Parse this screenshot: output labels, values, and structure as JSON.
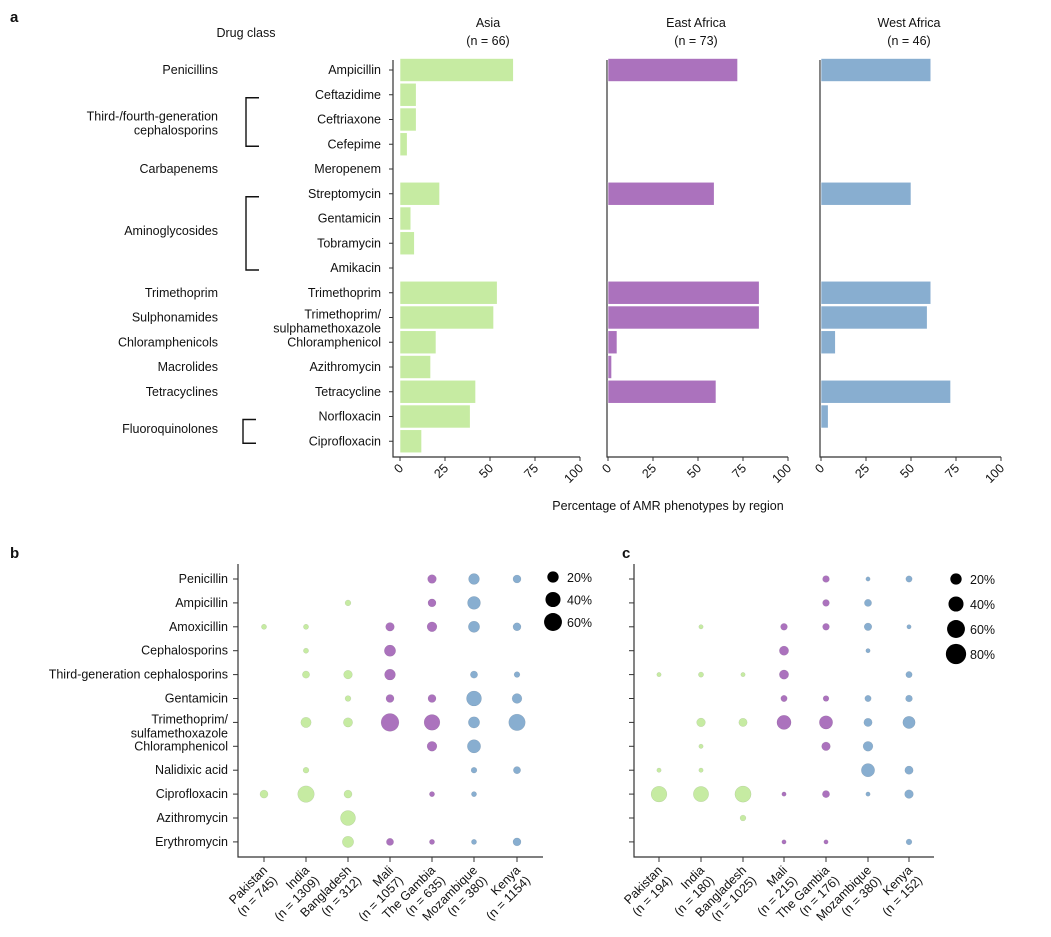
{
  "colors": {
    "Asia": "#c6eba2",
    "East Africa": "#ab72bd",
    "West Africa": "#88aed0",
    "legend": "#000000"
  },
  "chart_data": [
    {
      "panel": "a",
      "type": "bar",
      "orientation": "horizontal",
      "header_left": "Drug class",
      "xlabel": "Percentage of AMR phenotypes by region",
      "xlim": [
        0,
        100
      ],
      "xticks": [
        "0",
        "25",
        "50",
        "75",
        "100"
      ],
      "classes": [
        {
          "label": "Penicillins",
          "drugs": [
            "Ampicillin"
          ],
          "bracket": false
        },
        {
          "label": "Third-/fourth-generation\ncephalosporins",
          "drugs": [
            "Ceftazidime",
            "Ceftriaxone",
            "Cefepime"
          ],
          "bracket": true
        },
        {
          "label": "Carbapenems",
          "drugs": [
            "Meropenem"
          ],
          "bracket": false
        },
        {
          "label": "Aminoglycosides",
          "drugs": [
            "Streptomycin",
            "Gentamicin",
            "Tobramycin",
            "Amikacin"
          ],
          "bracket": true
        },
        {
          "label": "Trimethoprim",
          "drugs": [
            "Trimethoprim"
          ],
          "bracket": false
        },
        {
          "label": "Sulphonamides",
          "drugs": [
            "Trimethoprim/\nsulphamethoxazole"
          ],
          "bracket": false
        },
        {
          "label": "Chloramphenicols",
          "drugs": [
            "Chloramphenicol"
          ],
          "bracket": false
        },
        {
          "label": "Macrolides",
          "drugs": [
            "Azithromycin"
          ],
          "bracket": false
        },
        {
          "label": "Tetracyclines",
          "drugs": [
            "Tetracycline"
          ],
          "bracket": false
        },
        {
          "label": "Fluoroquinolones",
          "drugs": [
            "Norfloxacin",
            "Ciprofloxacin"
          ],
          "bracket": true
        }
      ],
      "categories": [
        "Ampicillin",
        "Ceftazidime",
        "Ceftriaxone",
        "Cefepime",
        "Meropenem",
        "Streptomycin",
        "Gentamicin",
        "Tobramycin",
        "Amikacin",
        "Trimethoprim",
        "Trimethoprim/\nsulphamethoxazole",
        "Chloramphenicol",
        "Azithromycin",
        "Tetracycline",
        "Norfloxacin",
        "Ciprofloxacin"
      ],
      "series": [
        {
          "name": "Asia",
          "n_label": "(n = 66)",
          "values": [
            63,
            9,
            9,
            4,
            0,
            22,
            6,
            8,
            0,
            54,
            52,
            20,
            17,
            42,
            39,
            12
          ]
        },
        {
          "name": "East Africa",
          "n_label": "(n = 73)",
          "values": [
            72,
            0,
            0,
            0,
            0,
            59,
            0,
            0,
            0,
            84,
            84,
            5,
            2,
            60,
            0,
            0
          ]
        },
        {
          "name": "West Africa",
          "n_label": "(n = 46)",
          "values": [
            61,
            0,
            0,
            0,
            0,
            50,
            0,
            0,
            0,
            61,
            59,
            8,
            0,
            72,
            4,
            0
          ]
        }
      ]
    },
    {
      "panel": "b",
      "type": "scatter",
      "encoding": "bubble size = percentage",
      "rows": [
        "Penicillin",
        "Ampicillin",
        "Amoxicillin",
        "Cephalosporins",
        "Third-generation cephalosporins",
        "Gentamicin",
        "Trimethoprim/\nsulfamethoxazole",
        "Chloramphenicol",
        "Nalidixic acid",
        "Ciprofloxacin",
        "Azithromycin",
        "Erythromycin"
      ],
      "columns": [
        {
          "name": "Pakistan",
          "n_label": "(n = 745)",
          "region": "Asia"
        },
        {
          "name": "India",
          "n_label": "(n = 1309)",
          "region": "Asia"
        },
        {
          "name": "Bangladesh",
          "n_label": "(n = 312)",
          "region": "Asia"
        },
        {
          "name": "Mali",
          "n_label": "(n = 1057)",
          "region": "West Africa"
        },
        {
          "name": "The Gambia",
          "n_label": "(n = 635)",
          "region": "West Africa"
        },
        {
          "name": "Mozambique",
          "n_label": "(n = 380)",
          "region": "East Africa"
        },
        {
          "name": "Kenya",
          "n_label": "(n = 1154)",
          "region": "East Africa"
        }
      ],
      "column_colors": [
        "#c6eba2",
        "#c6eba2",
        "#c6eba2",
        "#ab72bd",
        "#ab72bd",
        "#88aed0",
        "#88aed0"
      ],
      "legend": [
        "20%",
        "40%",
        "60%"
      ],
      "legend_values": [
        20,
        40,
        60
      ],
      "values": [
        [
          0,
          0,
          0,
          0,
          10,
          18,
          8
        ],
        [
          0,
          0,
          3,
          0,
          8,
          28,
          0
        ],
        [
          2,
          2,
          0,
          10,
          14,
          20,
          8
        ],
        [
          0,
          2,
          0,
          20,
          0,
          0,
          0
        ],
        [
          0,
          6,
          10,
          18,
          0,
          6,
          3
        ],
        [
          0,
          0,
          3,
          8,
          8,
          40,
          14
        ],
        [
          0,
          16,
          12,
          60,
          45,
          20,
          50
        ],
        [
          0,
          0,
          0,
          0,
          14,
          30,
          0
        ],
        [
          0,
          3,
          0,
          0,
          0,
          3,
          6
        ],
        [
          8,
          50,
          8,
          0,
          2,
          2,
          0
        ],
        [
          0,
          0,
          40,
          0,
          0,
          0,
          0
        ],
        [
          0,
          0,
          20,
          6,
          2,
          2,
          8
        ]
      ]
    },
    {
      "panel": "c",
      "type": "scatter",
      "encoding": "bubble size = percentage",
      "rows": [
        "Penicillin",
        "Ampicillin",
        "Amoxicillin",
        "Cephalosporins",
        "Third-generation cephalosporins",
        "Gentamicin",
        "Trimethoprim/\nsulfamethoxazole",
        "Chloramphenicol",
        "Nalidixic acid",
        "Ciprofloxacin",
        "Azithromycin",
        "Erythromycin"
      ],
      "columns": [
        {
          "name": "Pakistan",
          "n_label": "(n = 194)",
          "region": "Asia"
        },
        {
          "name": "India",
          "n_label": "(n = 180)",
          "region": "Asia"
        },
        {
          "name": "Bangladesh",
          "n_label": "(n = 1025)",
          "region": "Asia"
        },
        {
          "name": "Mali",
          "n_label": "(n = 215)",
          "region": "West Africa"
        },
        {
          "name": "The Gambia",
          "n_label": "(n = 176)",
          "region": "West Africa"
        },
        {
          "name": "Mozambique",
          "n_label": "(n = 380)",
          "region": "East Africa"
        },
        {
          "name": "Kenya",
          "n_label": "(n = 152)",
          "region": "East Africa"
        }
      ],
      "column_colors": [
        "#c6eba2",
        "#c6eba2",
        "#c6eba2",
        "#ab72bd",
        "#ab72bd",
        "#88aed0",
        "#88aed0"
      ],
      "legend": [
        "20%",
        "40%",
        "60%",
        "80%"
      ],
      "legend_values": [
        20,
        40,
        60,
        80
      ],
      "values": [
        [
          0,
          0,
          0,
          0,
          5,
          1,
          4
        ],
        [
          0,
          0,
          0,
          0,
          5,
          6,
          0
        ],
        [
          0,
          1,
          0,
          5,
          5,
          7,
          1
        ],
        [
          0,
          0,
          0,
          12,
          0,
          1,
          0
        ],
        [
          1,
          2,
          1,
          12,
          0,
          0,
          4
        ],
        [
          0,
          0,
          0,
          4,
          3,
          4,
          5
        ],
        [
          0,
          10,
          9,
          35,
          30,
          9,
          25
        ],
        [
          0,
          1,
          0,
          0,
          10,
          14,
          0
        ],
        [
          1,
          1,
          0,
          0,
          0,
          30,
          9
        ],
        [
          45,
          42,
          48,
          1,
          6,
          1,
          10
        ],
        [
          0,
          0,
          3,
          0,
          0,
          0,
          0
        ],
        [
          0,
          0,
          0,
          1,
          1,
          0,
          3
        ]
      ]
    }
  ]
}
